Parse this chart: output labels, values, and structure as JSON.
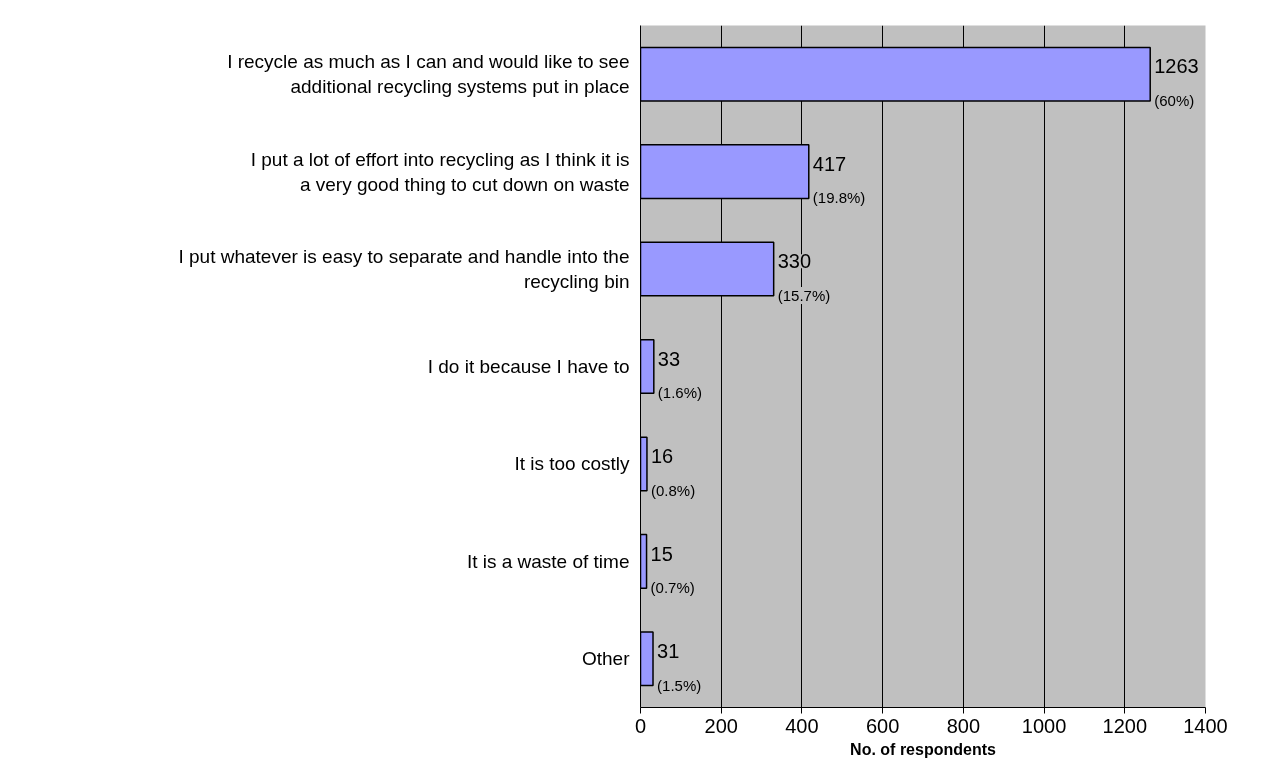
{
  "chart_data": {
    "type": "bar",
    "orientation": "horizontal",
    "categories": [
      "I recycle as much as I can and would like to see additional recycling systems put in place",
      "I put a lot of effort into recycling as I think it is a very good thing to cut down on waste",
      "I put whatever is easy to separate and handle into the recycling bin",
      "I do it because I have to",
      "It is too costly",
      "It is a waste of time",
      "Other"
    ],
    "values": [
      1263,
      417,
      330,
      33,
      16,
      15,
      31
    ],
    "color": "#9999ff",
    "data_labels": true,
    "annotations": [
      {
        "text": "(60%)",
        "x": 1263,
        "y": "I recycle as much as I can and would like to see additional recycling systems put in place"
      },
      {
        "text": "(19.8%)",
        "x": 417,
        "y": "I put a lot of effort into recycling as I think it is a very good thing to cut down on waste"
      },
      {
        "text": "(15.7%)",
        "x": 330,
        "y": "I put whatever is easy to separate and handle into the recycling bin"
      },
      {
        "text": "(1.6%)",
        "x": 33,
        "y": "I do it because I have to"
      },
      {
        "text": "(0.8%)",
        "x": 16,
        "y": "It is too costly"
      },
      {
        "text": "(0.7%)",
        "x": 15,
        "y": "It is a waste of time"
      },
      {
        "text": "(1.5%)",
        "x": 31,
        "y": "Other"
      }
    ],
    "xlabel": "No. of respondents",
    "xlim": [
      0,
      1400
    ],
    "xticks": [
      0,
      200,
      400,
      600,
      800,
      1000,
      1200,
      1400
    ],
    "grid": "x"
  }
}
